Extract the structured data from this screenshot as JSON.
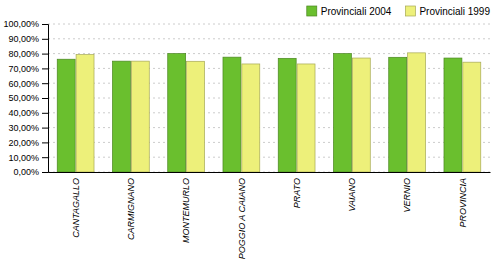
{
  "chart_data": {
    "type": "bar",
    "categories": [
      "CANTAGALLO",
      "CARMIGNANO",
      "MONTEMURLO",
      "POGGIO A CAIANO",
      "PRATO",
      "VAIANO",
      "VERNIO",
      "PROVINCIA"
    ],
    "series": [
      {
        "name": "Provinciali 2004",
        "color": "#6abf2e",
        "values": [
          0.762,
          0.749,
          0.8,
          0.776,
          0.768,
          0.8,
          0.775,
          0.77
        ]
      },
      {
        "name": "Provinciali 1999",
        "color": "#edf07a",
        "values": [
          0.793,
          0.749,
          0.748,
          0.73,
          0.73,
          0.77,
          0.805,
          0.742
        ]
      }
    ],
    "ylim": [
      0,
      1.0
    ],
    "yticks": [
      {
        "value": 0,
        "label": "0,00%"
      },
      {
        "value": 0.1,
        "label": "10,00%"
      },
      {
        "value": 0.2,
        "label": "20,00%"
      },
      {
        "value": 0.3,
        "label": "30,00%"
      },
      {
        "value": 0.4,
        "label": "40,00%"
      },
      {
        "value": 0.5,
        "label": "50,00%"
      },
      {
        "value": 0.6,
        "label": "60,00%"
      },
      {
        "value": 0.7,
        "label": "70,00%"
      },
      {
        "value": 0.8,
        "label": "80,00%"
      },
      {
        "value": 0.9,
        "label": "90,00%"
      },
      {
        "value": 1.0,
        "label": "100,00%"
      }
    ],
    "grid": true,
    "legend": "upper right"
  }
}
